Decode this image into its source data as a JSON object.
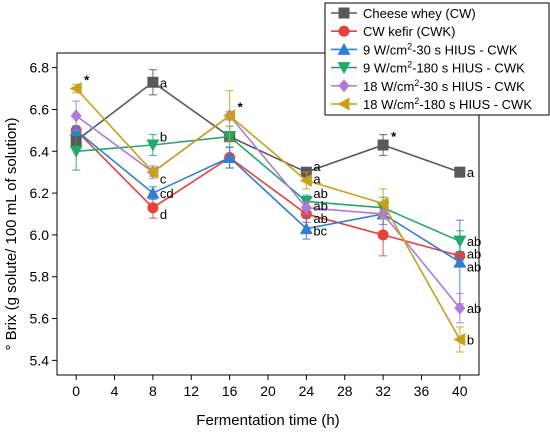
{
  "chart_data": {
    "type": "line",
    "title": "",
    "xlabel": "Fermentation time (h)",
    "ylabel": "° Brix (g solute/ 100 mL of solution)",
    "xlim": [
      -2,
      42
    ],
    "ylim": [
      5.33,
      6.87
    ],
    "x_ticks": [
      0,
      4,
      8,
      12,
      16,
      20,
      24,
      28,
      32,
      36,
      40
    ],
    "y_ticks": [
      5.4,
      5.6,
      5.8,
      6.0,
      6.2,
      6.4,
      6.6,
      6.8
    ],
    "x": [
      0,
      8,
      16,
      24,
      32,
      40
    ],
    "legend_position": "top-right",
    "series": [
      {
        "name": "Cheese whey (CW)",
        "color": "#595959",
        "marker": "square",
        "values": [
          6.45,
          6.73,
          6.47,
          6.3,
          6.43,
          6.3
        ],
        "errors": [
          0.02,
          0.06,
          0.02,
          0.02,
          0.05,
          0.01
        ]
      },
      {
        "name": "CW kefir (CWK)",
        "color": "#e8413c",
        "marker": "circle",
        "values": [
          6.5,
          6.13,
          6.37,
          6.1,
          6.0,
          5.9
        ],
        "errors": [
          0.02,
          0.05,
          0.05,
          0.04,
          0.1,
          0.02
        ]
      },
      {
        "name": "9 W/cm²-30 s HIUS - CWK",
        "name_html": [
          "9 W/cm",
          "2",
          "-30 s HIUS - CWK"
        ],
        "color": "#2f7fd6",
        "marker": "triangle-up",
        "values": [
          6.5,
          6.2,
          6.37,
          6.03,
          6.1,
          5.87
        ],
        "errors": [
          0.02,
          0.03,
          0.05,
          0.05,
          0.05,
          0.2
        ]
      },
      {
        "name": "9 W/cm²-180 s HIUS - CWK",
        "name_html": [
          "9 W/cm",
          "2",
          "-180 s HIUS - CWK"
        ],
        "color": "#23a86b",
        "marker": "triangle-down",
        "values": [
          6.4,
          6.43,
          6.47,
          6.16,
          6.13,
          5.97
        ],
        "errors": [
          0.09,
          0.05,
          0.05,
          0.03,
          0.05,
          0.05
        ]
      },
      {
        "name": "18 W/cm²-30 s HIUS - CWK",
        "name_html": [
          "18 W/cm",
          "2",
          "-30 s HIUS - CWK"
        ],
        "color": "#b07ad8",
        "marker": "diamond",
        "values": [
          6.57,
          6.3,
          6.57,
          6.13,
          6.1,
          5.65
        ],
        "errors": [
          0.07,
          0.03,
          0.02,
          0.03,
          0.02,
          0.07
        ]
      },
      {
        "name": "18 W/cm²-180 s HIUS - CWK",
        "name_html": [
          "18 W/cm",
          "2",
          "-180 s HIUS - CWK"
        ],
        "color": "#c9a01a",
        "marker": "triangle-left",
        "values": [
          6.7,
          6.3,
          6.57,
          6.26,
          6.15,
          5.5
        ],
        "errors": [
          0.02,
          0.02,
          0.12,
          0.04,
          0.07,
          0.06
        ]
      }
    ],
    "annotations": [
      {
        "text": "*",
        "x": 0,
        "y": 6.7
      },
      {
        "text": "a",
        "x": 8,
        "y": 6.73
      },
      {
        "text": "b",
        "x": 8,
        "y": 6.47
      },
      {
        "text": "c",
        "x": 8,
        "y": 6.27
      },
      {
        "text": "cd",
        "x": 8,
        "y": 6.2
      },
      {
        "text": "d",
        "x": 8,
        "y": 6.1
      },
      {
        "text": "*",
        "x": 16,
        "y": 6.57
      },
      {
        "text": "a",
        "x": 24,
        "y": 6.33
      },
      {
        "text": "a",
        "x": 24,
        "y": 6.27
      },
      {
        "text": "ab",
        "x": 24,
        "y": 6.2
      },
      {
        "text": "ab",
        "x": 24,
        "y": 6.14
      },
      {
        "text": "ab",
        "x": 24,
        "y": 6.08
      },
      {
        "text": "bc",
        "x": 24,
        "y": 6.02
      },
      {
        "text": "*",
        "x": 32,
        "y": 6.43
      },
      {
        "text": "a",
        "x": 40,
        "y": 6.3
      },
      {
        "text": "ab",
        "x": 40,
        "y": 5.97
      },
      {
        "text": "ab",
        "x": 40,
        "y": 5.91
      },
      {
        "text": "ab",
        "x": 40,
        "y": 5.85
      },
      {
        "text": "ab",
        "x": 40,
        "y": 5.65
      },
      {
        "text": "b",
        "x": 40,
        "y": 5.5
      }
    ]
  }
}
